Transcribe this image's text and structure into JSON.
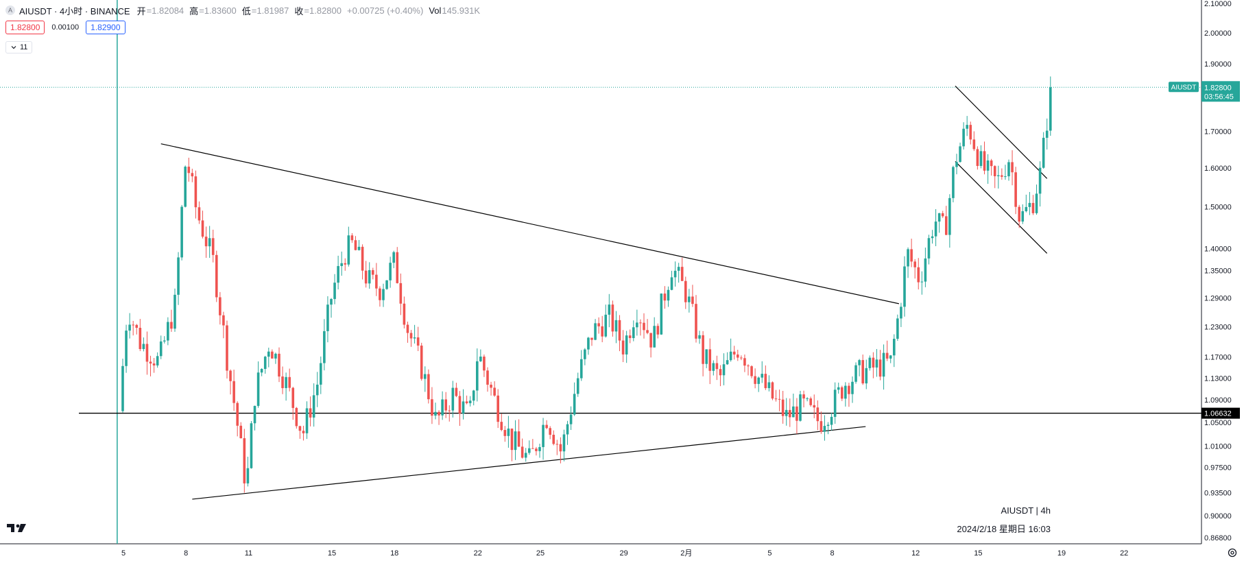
{
  "header": {
    "symbol_icon": "A",
    "title": "AIUSDT · 4小时 · BINANCE",
    "open_label": "开",
    "open_value": "=1.82084",
    "high_label": "高",
    "high_value": "=1.83600",
    "low_label": "低",
    "low_value": "=1.81987",
    "close_label": "收",
    "close_value": "=1.82800",
    "change": "+0.00725 (+0.40%)",
    "vol_label": "Vol",
    "vol_value": "145.931K"
  },
  "quote": {
    "bid": "1.82800",
    "spread": "0.00100",
    "ask": "1.82900"
  },
  "indicator_toggle": {
    "icon": "chevron-down-icon",
    "count": "11"
  },
  "watermark": {
    "line1": "AIUSDT | 4h",
    "line2": "2024/2/18 星期日 16:03"
  },
  "colors": {
    "up": "#26a69a",
    "down": "#ef5350",
    "price_tag": "#26a69a",
    "level_tag": "#000000",
    "bid": "#f23645",
    "ask": "#2962ff"
  },
  "chart_data": {
    "type": "candlestick",
    "symbol": "AIUSDT",
    "interval": "4h",
    "exchange": "BINANCE",
    "y_scale": "log",
    "ylim": [
      0.868,
      2.1
    ],
    "y_ticks": [
      "2.10000",
      "2.00000",
      "1.90000",
      "1.70000",
      "1.60000",
      "1.50000",
      "1.40000",
      "1.35000",
      "1.29000",
      "1.23000",
      "1.17000",
      "1.13000",
      "1.09000",
      "1.05000",
      "1.01000",
      "0.97500",
      "0.93500",
      "0.90000",
      "0.86800"
    ],
    "x_ticks": [
      {
        "label": "5",
        "day": 5
      },
      {
        "label": "8",
        "day": 8
      },
      {
        "label": "11",
        "day": 11
      },
      {
        "label": "15",
        "day": 15
      },
      {
        "label": "18",
        "day": 18
      },
      {
        "label": "22",
        "day": 22
      },
      {
        "label": "25",
        "day": 25
      },
      {
        "label": "29",
        "day": 29
      },
      {
        "label": "2月",
        "day": 32
      },
      {
        "label": "5",
        "day": 36
      },
      {
        "label": "8",
        "day": 39
      },
      {
        "label": "12",
        "day": 43
      },
      {
        "label": "15",
        "day": 46
      },
      {
        "label": "19",
        "day": 50
      },
      {
        "label": "22",
        "day": 53
      }
    ],
    "last_price": {
      "label": "AIUSDT",
      "price": "1.82800",
      "countdown": "03:56:45",
      "value": 1.828
    },
    "horizontal_level": {
      "label": "1.06632",
      "value": 1.06632
    },
    "session_start_day": 4.7,
    "trend_lines": [
      {
        "name": "upper-triangle",
        "from": {
          "day": 6.8,
          "value": 1.665
        },
        "to": {
          "day": 42.2,
          "value": 1.278
        }
      },
      {
        "name": "lower-triangle",
        "from": {
          "day": 8.3,
          "value": 0.925
        },
        "to": {
          "day": 40.6,
          "value": 1.043
        }
      },
      {
        "name": "channel-upper",
        "from": {
          "day": 44.9,
          "value": 1.832
        },
        "to": {
          "day": 49.3,
          "value": 1.572
        }
      },
      {
        "name": "channel-lower",
        "from": {
          "day": 44.9,
          "value": 1.617
        },
        "to": {
          "day": 49.3,
          "value": 1.389
        }
      }
    ],
    "anchors": [
      [
        4.8,
        1.07
      ],
      [
        5.2,
        1.27
      ],
      [
        5.8,
        1.2
      ],
      [
        6.7,
        1.16
      ],
      [
        7.5,
        1.28
      ],
      [
        8.0,
        1.63
      ],
      [
        8.5,
        1.49
      ],
      [
        9.3,
        1.37
      ],
      [
        10.0,
        1.16
      ],
      [
        10.9,
        0.94
      ],
      [
        11.3,
        1.1
      ],
      [
        12.0,
        1.2
      ],
      [
        12.8,
        1.12
      ],
      [
        13.6,
        1.03
      ],
      [
        14.3,
        1.12
      ],
      [
        15.0,
        1.3
      ],
      [
        15.6,
        1.39
      ],
      [
        16.0,
        1.41
      ],
      [
        16.7,
        1.33
      ],
      [
        17.3,
        1.31
      ],
      [
        18.0,
        1.37
      ],
      [
        18.6,
        1.23
      ],
      [
        19.3,
        1.15
      ],
      [
        20.0,
        1.05
      ],
      [
        20.8,
        1.1
      ],
      [
        21.6,
        1.06
      ],
      [
        22.0,
        1.18
      ],
      [
        22.8,
        1.09
      ],
      [
        23.6,
        1.02
      ],
      [
        24.5,
        0.985
      ],
      [
        25.3,
        1.06
      ],
      [
        26.0,
        1.0
      ],
      [
        26.8,
        1.13
      ],
      [
        27.5,
        1.22
      ],
      [
        28.3,
        1.25
      ],
      [
        29.0,
        1.19
      ],
      [
        29.6,
        1.27
      ],
      [
        30.4,
        1.2
      ],
      [
        31.3,
        1.36
      ],
      [
        32.0,
        1.3
      ],
      [
        32.8,
        1.17
      ],
      [
        33.6,
        1.13
      ],
      [
        34.5,
        1.19
      ],
      [
        35.3,
        1.14
      ],
      [
        36.0,
        1.1
      ],
      [
        36.8,
        1.06
      ],
      [
        37.6,
        1.08
      ],
      [
        38.4,
        1.05
      ],
      [
        39.0,
        1.08
      ],
      [
        39.6,
        1.12
      ],
      [
        40.3,
        1.14
      ],
      [
        41.0,
        1.15
      ],
      [
        41.8,
        1.16
      ],
      [
        42.2,
        1.26
      ],
      [
        42.6,
        1.39
      ],
      [
        43.2,
        1.33
      ],
      [
        43.9,
        1.47
      ],
      [
        44.4,
        1.44
      ],
      [
        44.9,
        1.62
      ],
      [
        45.5,
        1.72
      ],
      [
        46.2,
        1.6
      ],
      [
        46.9,
        1.56
      ],
      [
        47.5,
        1.63
      ],
      [
        48.0,
        1.47
      ],
      [
        48.6,
        1.51
      ],
      [
        49.0,
        1.59
      ],
      [
        49.4,
        1.78
      ],
      [
        49.6,
        1.828
      ]
    ]
  }
}
